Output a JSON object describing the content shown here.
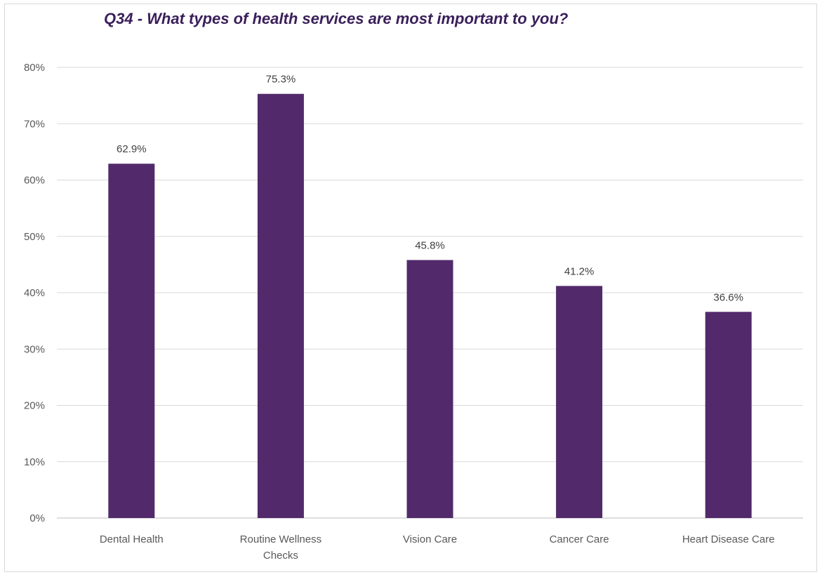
{
  "chart_data": {
    "type": "bar",
    "title": "Q34 - What types of health services are most important to you?",
    "xlabel": "",
    "ylabel": "",
    "categories": [
      [
        "Dental Health"
      ],
      [
        "Routine Wellness",
        "Checks"
      ],
      [
        "Vision Care"
      ],
      [
        "Cancer Care"
      ],
      [
        "Heart Disease Care"
      ]
    ],
    "values": [
      62.9,
      75.3,
      45.8,
      41.2,
      36.6
    ],
    "data_labels": [
      "62.9%",
      "75.3%",
      "45.8%",
      "41.2%",
      "36.6%"
    ],
    "ylim": [
      0,
      80
    ],
    "yticks": [
      0,
      10,
      20,
      30,
      40,
      50,
      60,
      70,
      80
    ],
    "ytick_labels": [
      "0%",
      "10%",
      "20%",
      "30%",
      "40%",
      "50%",
      "60%",
      "70%",
      "80%"
    ],
    "grid": true,
    "legend": "none",
    "bar_color": "#522a6b",
    "grid_color": "#d9d9d9"
  }
}
